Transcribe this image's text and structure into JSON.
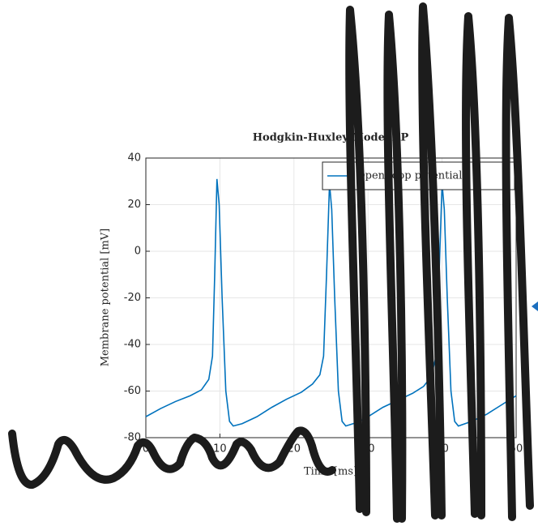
{
  "chart_data": {
    "type": "line",
    "title": "Hodgkin-Huxley Model AP",
    "x_label": "Time [ms]",
    "y_label": "Membrane potential [mV]",
    "x": [
      0,
      2,
      4,
      6,
      7.5,
      8.5,
      9,
      9.3,
      9.6,
      9.9,
      10.3,
      10.8,
      11.3,
      11.8,
      13,
      15,
      17,
      19,
      21,
      22.5,
      23.5,
      24,
      24.4,
      24.8,
      25.1,
      25.5,
      26,
      26.5,
      27,
      28.5,
      30,
      32,
      34,
      36,
      37.5,
      38.5,
      39.2,
      39.6,
      40,
      40.3,
      40.7,
      41.2,
      41.7,
      42.2,
      44,
      46,
      48,
      50
    ],
    "series": [
      {
        "name": "Open-loop potential",
        "color": "#0072bd",
        "values": [
          -71,
          -67.5,
          -64.5,
          -62,
          -59.5,
          -55,
          -45,
          -10,
          31,
          20,
          -20,
          -60,
          -73,
          -75,
          -74,
          -71,
          -67,
          -63.5,
          -60.5,
          -57,
          -53,
          -45,
          -10,
          29,
          18,
          -20,
          -60,
          -73,
          -75,
          -73.5,
          -71,
          -67,
          -64,
          -61,
          -58,
          -54,
          -45,
          -10,
          29,
          18,
          -20,
          -60,
          -73,
          -75,
          -73,
          -70,
          -66,
          -62
        ]
      }
    ],
    "xlim": [
      0,
      50
    ],
    "xticks": [
      0,
      10,
      20,
      30,
      40,
      50
    ],
    "ylim": [
      -80,
      40
    ],
    "yticks": [
      -80,
      -60,
      -40,
      -20,
      0,
      20,
      40
    ],
    "grid": true,
    "legend": "upper right"
  }
}
